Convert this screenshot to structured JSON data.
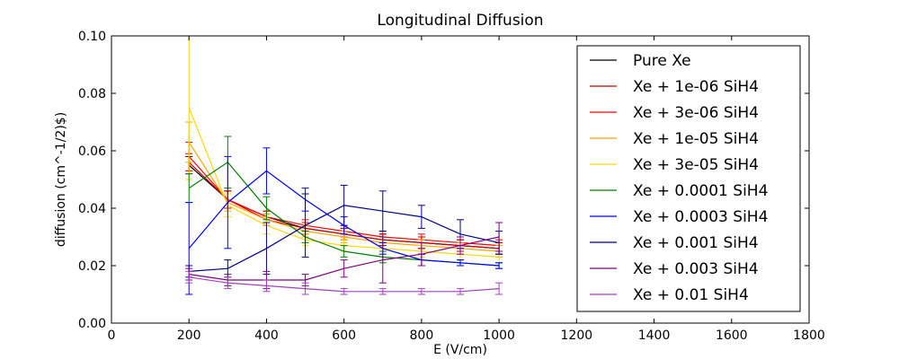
{
  "chart_data": {
    "type": "line",
    "title": "Longitudinal Diffusion",
    "xlabel": "E (V/cm)",
    "ylabel": "diffusion (cm^-1/2)$)",
    "xlim": [
      0,
      1800
    ],
    "ylim": [
      0.0,
      0.1
    ],
    "xticks": [
      "0",
      "200",
      "400",
      "600",
      "800",
      "1000",
      "1200",
      "1400",
      "1600",
      "1800"
    ],
    "yticks": [
      "0.00",
      "0.02",
      "0.04",
      "0.06",
      "0.08",
      "0.10"
    ],
    "grid": false,
    "legend_position": "right",
    "x": [
      200,
      300,
      400,
      500,
      600,
      700,
      800,
      900,
      1000
    ],
    "series": [
      {
        "name": "Pure Xe",
        "color": "#000000",
        "values": [
          0.055,
          0.043,
          0.037,
          0.033,
          0.031,
          0.029,
          0.028,
          0.027,
          0.026
        ],
        "errors": [
          0.003,
          0.003,
          0.002,
          0.002,
          0.002,
          0.002,
          0.002,
          0.002,
          0.002
        ]
      },
      {
        "name": "Xe + 1e-06 SiH4",
        "color": "#cc0000",
        "values": [
          0.056,
          0.043,
          0.036,
          0.033,
          0.031,
          0.029,
          0.028,
          0.027,
          0.026
        ],
        "errors": [
          0.003,
          0.003,
          0.002,
          0.002,
          0.002,
          0.002,
          0.002,
          0.002,
          0.002
        ]
      },
      {
        "name": "Xe + 3e-06 SiH4",
        "color": "#ff0000",
        "values": [
          0.058,
          0.043,
          0.037,
          0.034,
          0.032,
          0.03,
          0.029,
          0.028,
          0.027
        ],
        "errors": [
          0.005,
          0.003,
          0.002,
          0.002,
          0.002,
          0.002,
          0.002,
          0.002,
          0.002
        ]
      },
      {
        "name": "Xe + 1e-05 SiH4",
        "color": "#ffa500",
        "values": [
          0.063,
          0.042,
          0.036,
          0.032,
          0.03,
          0.028,
          0.027,
          0.026,
          0.025
        ],
        "errors": [
          0.007,
          0.003,
          0.002,
          0.002,
          0.002,
          0.002,
          0.002,
          0.002,
          0.002
        ]
      },
      {
        "name": "Xe + 3e-05 SiH4",
        "color": "#ffd700",
        "values": [
          0.075,
          0.041,
          0.034,
          0.029,
          0.027,
          0.026,
          0.025,
          0.024,
          0.023
        ],
        "errors": [
          0.025,
          0.004,
          0.003,
          0.002,
          0.002,
          0.002,
          0.002,
          0.002,
          0.002
        ]
      },
      {
        "name": "Xe + 0.0001 SiH4",
        "color": "#008000",
        "values": [
          0.047,
          0.056,
          0.04,
          0.03,
          0.025,
          0.023,
          0.022,
          0.021,
          0.02
        ],
        "errors": [
          0.005,
          0.009,
          0.004,
          0.002,
          0.002,
          0.002,
          0.002,
          0.001,
          0.001
        ]
      },
      {
        "name": "Xe + 0.0003 SiH4",
        "color": "#0000ff",
        "values": [
          0.026,
          0.042,
          0.053,
          0.043,
          0.034,
          0.026,
          0.022,
          0.021,
          0.02
        ],
        "errors": [
          0.016,
          0.016,
          0.008,
          0.004,
          0.003,
          0.002,
          0.002,
          0.001,
          0.001
        ]
      },
      {
        "name": "Xe + 0.001 SiH4",
        "color": "#00008b",
        "values": [
          0.018,
          0.019,
          0.026,
          0.034,
          0.041,
          0.039,
          0.037,
          0.031,
          0.028
        ],
        "errors": [
          0.002,
          0.003,
          0.009,
          0.011,
          0.007,
          0.007,
          0.004,
          0.005,
          0.004
        ]
      },
      {
        "name": "Xe + 0.003 SiH4",
        "color": "#800080",
        "values": [
          0.017,
          0.015,
          0.015,
          0.015,
          0.019,
          0.022,
          0.024,
          0.027,
          0.03
        ],
        "errors": [
          0.002,
          0.002,
          0.003,
          0.002,
          0.003,
          0.008,
          0.004,
          0.003,
          0.005
        ]
      },
      {
        "name": "Xe + 0.01 SiH4",
        "color": "#a040c0",
        "values": [
          0.016,
          0.014,
          0.013,
          0.012,
          0.011,
          0.011,
          0.011,
          0.011,
          0.012
        ],
        "errors": [
          0.002,
          0.002,
          0.002,
          0.002,
          0.001,
          0.001,
          0.001,
          0.001,
          0.002
        ]
      }
    ]
  }
}
